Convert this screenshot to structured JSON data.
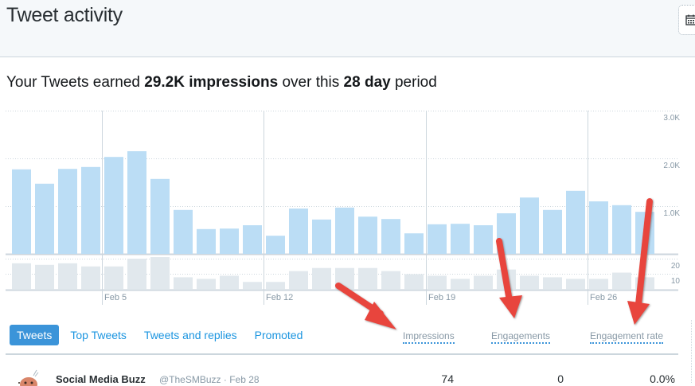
{
  "header": {
    "title": "Tweet activity",
    "date_button_icon": "calendar-icon"
  },
  "summary": {
    "prefix": "Your Tweets earned ",
    "impressions": "29.2K impressions",
    "middle": " over this ",
    "period": "28 day",
    "suffix": " period"
  },
  "chart_data": [
    {
      "type": "bar",
      "title": "Impressions per day",
      "xlabel": "",
      "ylabel": "Impressions",
      "ylim": [
        0,
        3000
      ],
      "y_ticks": [
        "1.0K",
        "2.0K",
        "3.0K"
      ],
      "x_tick_labels": [
        "Feb 5",
        "Feb 12",
        "Feb 19",
        "Feb 26"
      ],
      "grid": true,
      "color": "#bbddf5",
      "categories": [
        "Feb 1",
        "Feb 2",
        "Feb 3",
        "Feb 4",
        "Feb 5",
        "Feb 6",
        "Feb 7",
        "Feb 8",
        "Feb 9",
        "Feb 10",
        "Feb 11",
        "Feb 12",
        "Feb 13",
        "Feb 14",
        "Feb 15",
        "Feb 16",
        "Feb 17",
        "Feb 18",
        "Feb 19",
        "Feb 20",
        "Feb 21",
        "Feb 22",
        "Feb 23",
        "Feb 24",
        "Feb 25",
        "Feb 26",
        "Feb 27",
        "Feb 28"
      ],
      "values": [
        1770,
        1470,
        1780,
        1820,
        2030,
        2150,
        1570,
        920,
        520,
        530,
        600,
        380,
        950,
        720,
        970,
        780,
        730,
        430,
        620,
        630,
        600,
        850,
        1180,
        920,
        1320,
        1100,
        1020,
        880
      ]
    },
    {
      "type": "bar",
      "title": "Engagements per day",
      "ylabel": "Engagements",
      "ylim": [
        0,
        20
      ],
      "y_ticks": [
        "10",
        "20"
      ],
      "grid": true,
      "color": "#e1e8ed",
      "categories": [
        "Feb 1",
        "Feb 2",
        "Feb 3",
        "Feb 4",
        "Feb 5",
        "Feb 6",
        "Feb 7",
        "Feb 8",
        "Feb 9",
        "Feb 10",
        "Feb 11",
        "Feb 12",
        "Feb 13",
        "Feb 14",
        "Feb 15",
        "Feb 16",
        "Feb 17",
        "Feb 18",
        "Feb 19",
        "Feb 20",
        "Feb 21",
        "Feb 22",
        "Feb 23",
        "Feb 24",
        "Feb 25",
        "Feb 26",
        "Feb 27",
        "Feb 28"
      ],
      "values": [
        17,
        16,
        17,
        15,
        15,
        20,
        21,
        8,
        7,
        9,
        5,
        5,
        12,
        14,
        14,
        14,
        12,
        10,
        9,
        7,
        9,
        13,
        9,
        8,
        7,
        7,
        11,
        8
      ]
    }
  ],
  "y_labels": {
    "k3": "3.0K",
    "k2": "2.0K",
    "k1": "1.0K",
    "e20": "20",
    "e10": "10"
  },
  "x_labels": {
    "d1": "Feb 5",
    "d2": "Feb 12",
    "d3": "Feb 19",
    "d4": "Feb 26"
  },
  "tabs": [
    {
      "label": "Tweets",
      "active": true
    },
    {
      "label": "Top Tweets",
      "active": false
    },
    {
      "label": "Tweets and replies",
      "active": false
    },
    {
      "label": "Promoted",
      "active": false
    }
  ],
  "columns": {
    "impressions": "Impressions",
    "engagements": "Engagements",
    "engagement_rate": "Engagement rate"
  },
  "rows": [
    {
      "author": "Social Media Buzz",
      "handle_date": "@TheSMBuzz · Feb 28",
      "impressions": "74",
      "engagements": "0",
      "engagement_rate": "0.0%"
    }
  ],
  "colors": {
    "accent": "#3b94d9",
    "link": "#1b95e0",
    "impressions_bar": "#bbddf5",
    "engagements_bar": "#e1e8ed",
    "annotation_arrow": "#e8453c"
  }
}
